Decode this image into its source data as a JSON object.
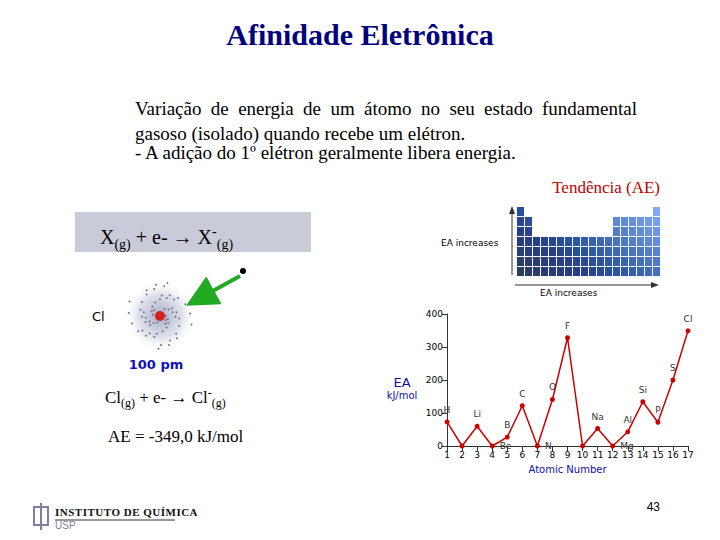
{
  "title": "Afinidade Eletrônica",
  "definition": "Variação de energia de um átomo no seu estado fundamental gasoso (isolado) quando recebe um elétron.",
  "note": "- A adição do 1º elétron geralmente libera energia.",
  "trend_heading": "Tendência (AE)",
  "general_equation": [
    {
      "text": "X"
    },
    {
      "text": "(g)",
      "sub": true
    },
    {
      "text": " + e- → X"
    },
    {
      "text": "-",
      "sup": true
    },
    {
      "text": "(g)",
      "sub": true
    }
  ],
  "atom": {
    "symbol": "Cl",
    "scale": "100 pm"
  },
  "cl_equation": [
    {
      "text": "Cl"
    },
    {
      "text": "(g)",
      "sub": true
    },
    {
      "text": " + e- → Cl"
    },
    {
      "text": "-",
      "sup": true
    },
    {
      "text": "(g)",
      "sub": true
    }
  ],
  "cl_affinity": "AE = -349,0 kJ/mol",
  "periodic_table": {
    "side_label": "EA increases",
    "bottom_label": "EA increases"
  },
  "chart_data": {
    "type": "line",
    "x": [
      1,
      2,
      3,
      4,
      5,
      6,
      7,
      8,
      9,
      10,
      11,
      12,
      13,
      14,
      15,
      16,
      17
    ],
    "values": [
      73,
      0,
      60,
      0,
      27,
      122,
      0,
      141,
      328,
      0,
      53,
      0,
      43,
      134,
      72,
      200,
      349
    ],
    "point_labels": [
      "H",
      null,
      "Li",
      "Be",
      "B",
      "C",
      "N",
      "O",
      "F",
      null,
      "Na",
      "Mg",
      "Al",
      "Si",
      "P",
      "S",
      "Cl"
    ],
    "x_label": "Atomic Number",
    "y_label": "EA",
    "y_unit": "kJ/mol",
    "xlim": [
      1,
      17
    ],
    "xticks": [
      1,
      2,
      3,
      4,
      5,
      6,
      7,
      8,
      9,
      10,
      11,
      12,
      13,
      14,
      15,
      16,
      17
    ],
    "ylim": [
      0,
      400
    ],
    "yticks": [
      0,
      100,
      200,
      300,
      400
    ],
    "color": "#cc0000",
    "marker": "circle",
    "grid": false
  },
  "footer": {
    "institution": "INSTITUTO DE QUÍMICA",
    "university": "USP",
    "page": 43
  }
}
